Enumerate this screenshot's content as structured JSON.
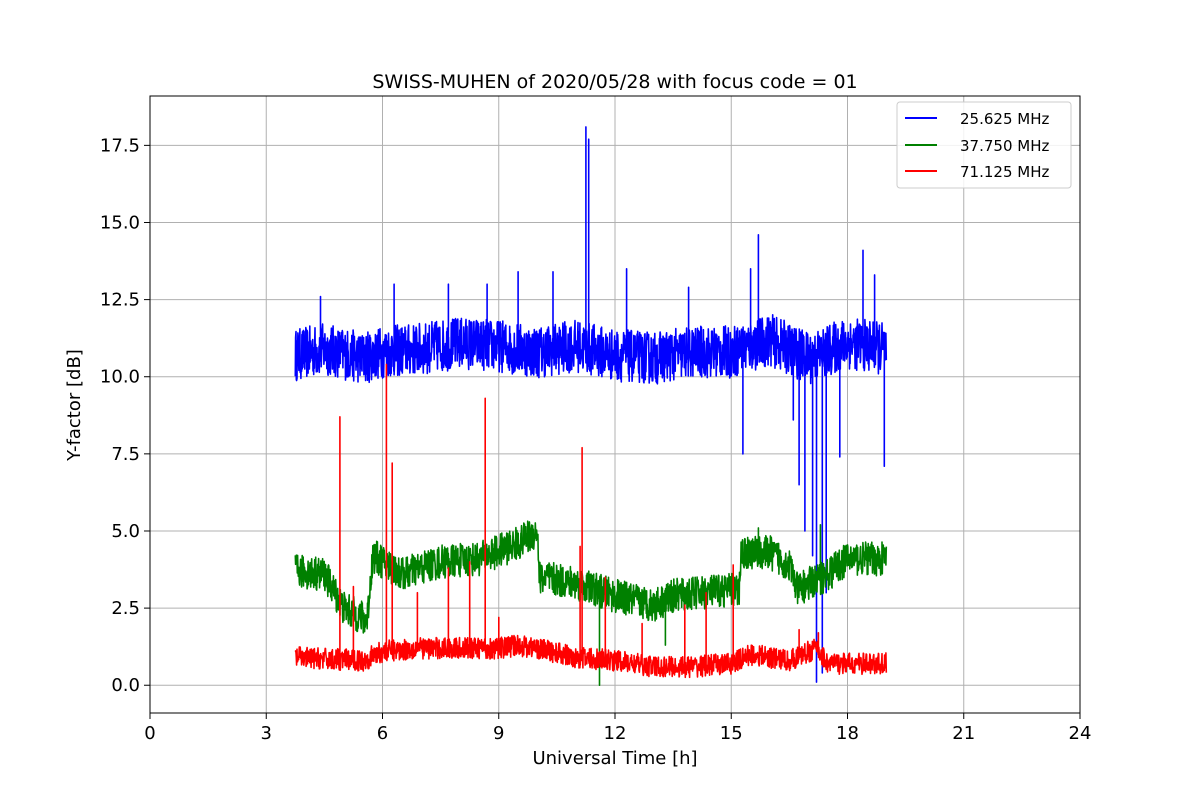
{
  "chart_data": {
    "type": "line",
    "title": "SWISS-MUHEN of 2020/05/28 with focus code = 01",
    "xlabel": "Universal Time [h]",
    "ylabel": "Y-factor [dB]",
    "xlim": [
      0,
      24
    ],
    "ylim": [
      -0.9,
      19.1
    ],
    "xticks": [
      0,
      3,
      6,
      9,
      12,
      15,
      18,
      21,
      24
    ],
    "xtick_labels": [
      "0",
      "3",
      "6",
      "9",
      "12",
      "15",
      "18",
      "21",
      "24"
    ],
    "yticks": [
      0,
      2.5,
      5,
      7.5,
      10,
      12.5,
      15,
      17.5
    ],
    "ytick_labels": [
      "0.0",
      "2.5",
      "5.0",
      "7.5",
      "10.0",
      "12.5",
      "15.0",
      "17.5"
    ],
    "grid": true,
    "legend_position": "top-right",
    "series": [
      {
        "name": "25.625 MHz",
        "color": "#0000ff",
        "noise": 0.85,
        "baseline": [
          [
            3.75,
            10.7
          ],
          [
            4.5,
            10.9
          ],
          [
            5.5,
            10.6
          ],
          [
            6.0,
            10.8
          ],
          [
            7.0,
            10.9
          ],
          [
            8.0,
            11.1
          ],
          [
            9.0,
            11.0
          ],
          [
            10.0,
            10.8
          ],
          [
            11.0,
            11.0
          ],
          [
            12.0,
            10.7
          ],
          [
            13.0,
            10.6
          ],
          [
            14.0,
            10.8
          ],
          [
            15.0,
            10.8
          ],
          [
            16.0,
            11.2
          ],
          [
            17.0,
            10.6
          ],
          [
            18.0,
            11.1
          ],
          [
            19.0,
            10.9
          ]
        ],
        "spikes": [
          [
            4.4,
            12.6
          ],
          [
            6.3,
            13.0
          ],
          [
            7.7,
            13.0
          ],
          [
            8.7,
            13.0
          ],
          [
            9.5,
            13.4
          ],
          [
            10.4,
            13.4
          ],
          [
            11.25,
            18.1
          ],
          [
            11.32,
            17.7
          ],
          [
            12.3,
            13.5
          ],
          [
            13.9,
            12.9
          ],
          [
            15.3,
            7.5
          ],
          [
            15.5,
            13.5
          ],
          [
            15.7,
            14.6
          ],
          [
            16.6,
            8.6
          ],
          [
            16.75,
            6.5
          ],
          [
            16.9,
            5.0
          ],
          [
            17.1,
            4.2
          ],
          [
            17.2,
            0.1
          ],
          [
            17.35,
            0.4
          ],
          [
            17.45,
            3.0
          ],
          [
            17.8,
            7.4
          ],
          [
            18.4,
            14.1
          ],
          [
            18.7,
            13.3
          ],
          [
            18.95,
            7.1
          ]
        ]
      },
      {
        "name": "37.750 MHz",
        "color": "#008000",
        "noise": 0.55,
        "baseline": [
          [
            3.75,
            3.7
          ],
          [
            4.5,
            3.6
          ],
          [
            5.0,
            2.5
          ],
          [
            5.6,
            2.1
          ],
          [
            5.75,
            4.2
          ],
          [
            6.5,
            3.6
          ],
          [
            7.5,
            4.0
          ],
          [
            8.5,
            4.1
          ],
          [
            9.5,
            4.6
          ],
          [
            10.0,
            5.0
          ],
          [
            10.05,
            3.5
          ],
          [
            11.0,
            3.3
          ],
          [
            12.0,
            2.9
          ],
          [
            13.0,
            2.6
          ],
          [
            13.5,
            2.9
          ],
          [
            15.0,
            3.1
          ],
          [
            15.2,
            3.0
          ],
          [
            15.25,
            4.3
          ],
          [
            16.0,
            4.3
          ],
          [
            16.5,
            3.9
          ],
          [
            16.7,
            3.1
          ],
          [
            17.5,
            3.6
          ],
          [
            18.0,
            4.1
          ],
          [
            19.0,
            4.1
          ]
        ],
        "spikes": [
          [
            11.6,
            0.0
          ],
          [
            13.3,
            1.3
          ],
          [
            15.7,
            5.1
          ],
          [
            17.3,
            5.2
          ]
        ]
      },
      {
        "name": "71.125 MHz",
        "color": "#ff0000",
        "noise": 0.35,
        "baseline": [
          [
            3.75,
            0.9
          ],
          [
            5.5,
            0.8
          ],
          [
            6.0,
            1.1
          ],
          [
            7.0,
            1.2
          ],
          [
            8.0,
            1.2
          ],
          [
            9.0,
            1.2
          ],
          [
            9.5,
            1.3
          ],
          [
            10.0,
            1.2
          ],
          [
            11.0,
            0.9
          ],
          [
            12.0,
            0.8
          ],
          [
            13.0,
            0.6
          ],
          [
            14.0,
            0.6
          ],
          [
            15.0,
            0.7
          ],
          [
            15.5,
            1.0
          ],
          [
            16.5,
            0.8
          ],
          [
            17.2,
            1.2
          ],
          [
            17.5,
            0.7
          ],
          [
            19.0,
            0.7
          ]
        ],
        "spikes": [
          [
            4.9,
            8.7
          ],
          [
            5.25,
            3.2
          ],
          [
            6.1,
            10.4
          ],
          [
            6.25,
            7.2
          ],
          [
            6.9,
            3.0
          ],
          [
            7.7,
            3.8
          ],
          [
            8.25,
            4.0
          ],
          [
            8.65,
            9.3
          ],
          [
            9.0,
            2.2
          ],
          [
            11.1,
            4.5
          ],
          [
            11.15,
            7.7
          ],
          [
            11.75,
            3.5
          ],
          [
            12.7,
            2.0
          ],
          [
            13.8,
            2.6
          ],
          [
            14.35,
            3.0
          ],
          [
            15.05,
            3.9
          ],
          [
            16.75,
            1.8
          ],
          [
            17.25,
            1.7
          ]
        ]
      }
    ]
  }
}
